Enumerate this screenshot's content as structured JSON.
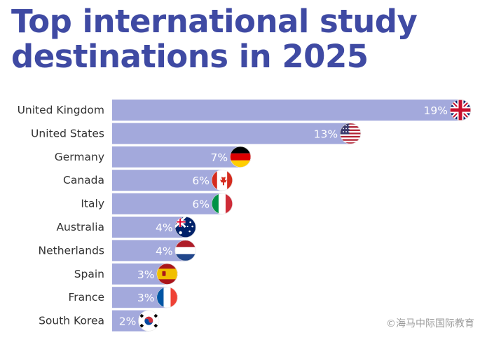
{
  "chart_data": {
    "type": "bar",
    "orientation": "horizontal",
    "title": "Top international study destinations in 2025",
    "categories": [
      "United Kingdom",
      "United States",
      "Germany",
      "Canada",
      "Italy",
      "Australia",
      "Netherlands",
      "Spain",
      "France",
      "South Korea"
    ],
    "values": [
      19,
      13,
      7,
      6,
      6,
      4,
      4,
      3,
      3,
      2
    ],
    "value_labels": [
      "19%",
      "13%",
      "7%",
      "6%",
      "6%",
      "4%",
      "4%",
      "3%",
      "3%",
      "2%"
    ],
    "flags": [
      "uk-flag-icon",
      "us-flag-icon",
      "germany-flag-icon",
      "canada-flag-icon",
      "italy-flag-icon",
      "australia-flag-icon",
      "netherlands-flag-icon",
      "spain-flag-icon",
      "france-flag-icon",
      "south-korea-flag-icon"
    ],
    "xlim": [
      0,
      19
    ],
    "grid": false,
    "legend": "none"
  },
  "colors": {
    "title": "#3f4aa3",
    "bar": "#a3a9dc",
    "value_label": "#ffffff",
    "category_label": "#333333"
  },
  "watermark": "©海马中际国际教育"
}
